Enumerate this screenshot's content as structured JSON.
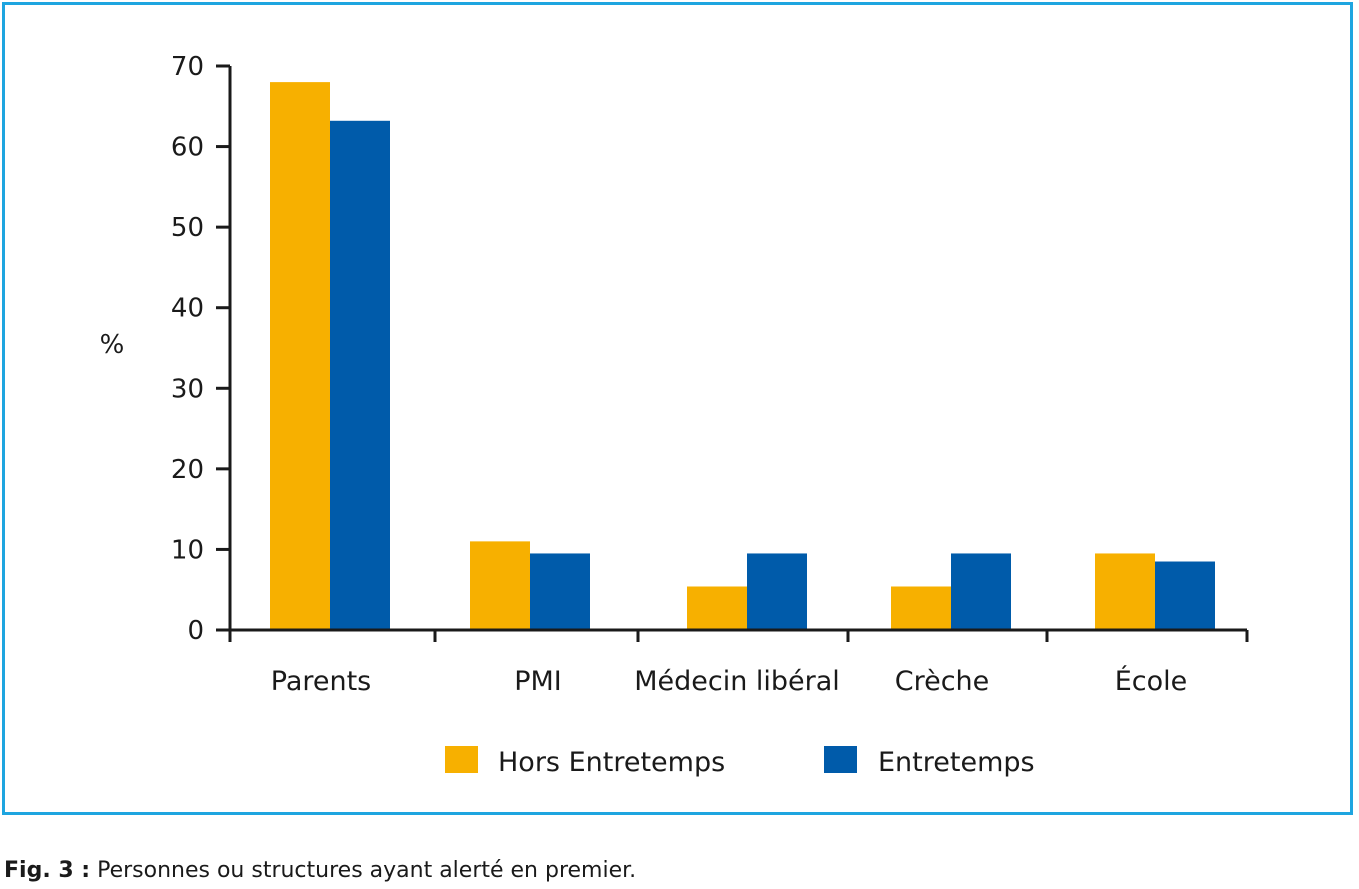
{
  "chart_data": {
    "type": "bar",
    "title": "",
    "xlabel": "",
    "ylabel": "%",
    "ylim": [
      0,
      70
    ],
    "yticks": [
      0,
      10,
      20,
      30,
      40,
      50,
      60,
      70
    ],
    "grid": false,
    "legend_position": "bottom",
    "categories": [
      "Parents",
      "PMI",
      "Médecin libéral",
      "Crèche",
      "École"
    ],
    "series": [
      {
        "name": "Hors Entretemps",
        "color": "#f7b000",
        "values": [
          68,
          11,
          5.4,
          5.4,
          9.5
        ]
      },
      {
        "name": "Entretemps",
        "color": "#005baa",
        "values": [
          63.2,
          9.5,
          9.5,
          9.5,
          8.5
        ]
      }
    ]
  },
  "caption": {
    "label": "Fig. 3 :",
    "text": " Personnes ou structures ayant alerté en premier."
  },
  "colors": {
    "frame": "#1ea5e0",
    "axis": "#1a1a1a"
  }
}
